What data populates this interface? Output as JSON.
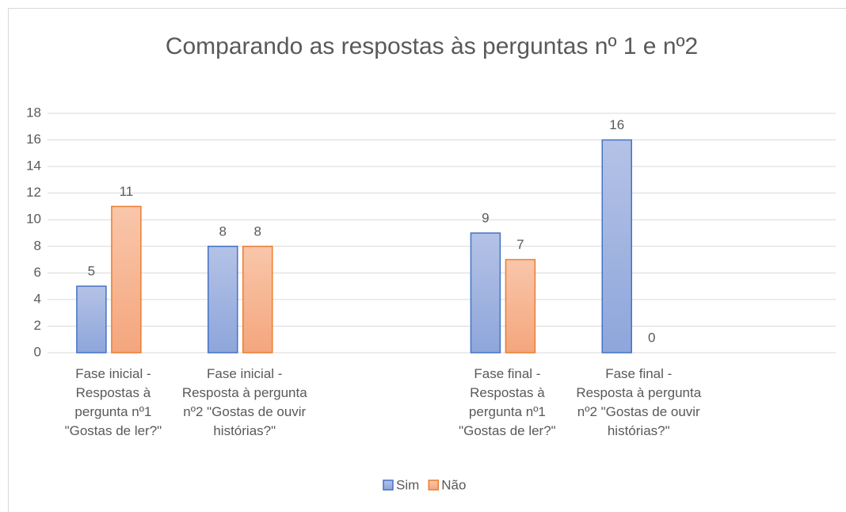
{
  "chart_data": {
    "type": "bar",
    "title": "Comparando as respostas às perguntas nº 1 e nº2",
    "categories": [
      "Fase inicial - Respostas à pergunta nº1 \"Gostas de ler?\"",
      "Fase inicial - Resposta à pergunta nº2 \"Gostas de ouvir histórias?\"",
      null,
      "Fase final - Respostas à pergunta nº1 \"Gostas de ler?\"",
      "Fase final - Resposta à pergunta nº2 \"Gostas de ouvir histórias?\"",
      null
    ],
    "series": [
      {
        "name": "Sim",
        "color": "#4472c4",
        "values": [
          5,
          8,
          null,
          9,
          16,
          null
        ]
      },
      {
        "name": "Não",
        "color": "#ed7d31",
        "values": [
          11,
          8,
          null,
          7,
          0,
          null
        ]
      }
    ],
    "ylim": [
      0,
      18
    ],
    "yticks": [
      0,
      2,
      4,
      6,
      8,
      10,
      12,
      14,
      16,
      18
    ],
    "grid": true,
    "legend": "bottom"
  }
}
